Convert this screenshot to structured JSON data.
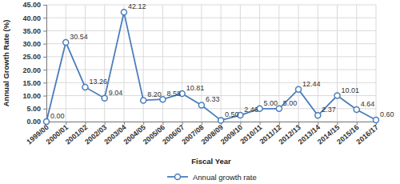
{
  "chart_data": {
    "type": "line",
    "xlabel": "Fiscal Year",
    "ylabel": "Annual Growth Rate (%)",
    "categories": [
      "1999/00",
      "2000/01",
      "2001/02",
      "2002/03",
      "2003/04",
      "2004/05",
      "2005/06",
      "2006/07",
      "2007/08",
      "2008/09",
      "2009/10",
      "2010/11",
      "2011/12",
      "2012/13",
      "2013/14",
      "2014/15",
      "2015/16",
      "2016/17"
    ],
    "series": [
      {
        "name": "Annual growth rate",
        "color": "#4a7ebb",
        "marker": "circle",
        "line_style": "solid",
        "values": [
          0,
          30.54,
          13.26,
          9.04,
          42.12,
          8.2,
          8.58,
          10.81,
          6.33,
          0.5,
          2.46,
          5,
          5,
          12.44,
          2.37,
          10.01,
          4.64,
          0.6
        ],
        "value_labels": [
          "0.00",
          "30.54",
          "13.26",
          "9.04",
          "42.12",
          "8.20",
          "8.58",
          "10.81",
          "6.33",
          "0.50",
          "2.46",
          "5.00",
          "5.00",
          "12.44",
          "2.37",
          "10.01",
          "4.64",
          "0.60"
        ]
      }
    ],
    "ylim": [
      0,
      45
    ],
    "yticks": [
      {
        "value": 0,
        "label": "0.00"
      },
      {
        "value": 5,
        "label": "5.00"
      },
      {
        "value": 10,
        "label": "10.00"
      },
      {
        "value": 15,
        "label": "15.00"
      },
      {
        "value": 20,
        "label": "20.00"
      },
      {
        "value": 25,
        "label": "25.00"
      },
      {
        "value": 30,
        "label": "30.00"
      },
      {
        "value": 35,
        "label": "35.00"
      },
      {
        "value": 40,
        "label": "40.00"
      },
      {
        "value": 45,
        "label": "45.00"
      }
    ],
    "grid": true,
    "data_labels": true,
    "legend": "bottom"
  }
}
